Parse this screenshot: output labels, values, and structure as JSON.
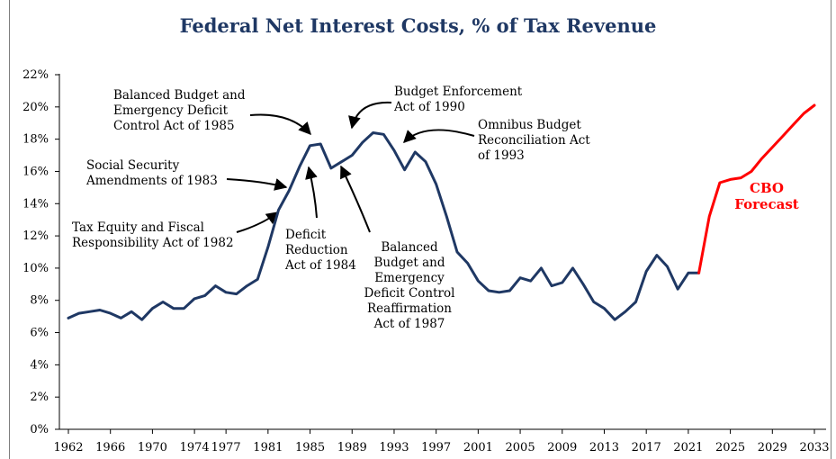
{
  "chart_data": {
    "type": "line",
    "title": "Federal Net Interest Costs, % of Tax Revenue",
    "xlabel": "",
    "ylabel": "",
    "xlim": [
      1962,
      2033
    ],
    "ylim": [
      0,
      22
    ],
    "x_ticks": [
      "1962",
      "1966",
      "1970",
      "1974",
      "1977",
      "1981",
      "1985",
      "1989",
      "1993",
      "1997",
      "2001",
      "2005",
      "2009",
      "2013",
      "2017",
      "2021",
      "2025",
      "2029",
      "2033"
    ],
    "y_ticks": [
      "0%",
      "2%",
      "4%",
      "6%",
      "8%",
      "10%",
      "12%",
      "14%",
      "16%",
      "18%",
      "20%",
      "22%"
    ],
    "grid": false,
    "colors": {
      "historical": "#1f3864",
      "forecast": "#ff0000"
    },
    "series": [
      {
        "name": "",
        "x": [
          1962,
          1963,
          1964,
          1965,
          1966,
          1967,
          1968,
          1969,
          1970,
          1971,
          1972,
          1973,
          1974,
          1975,
          1976,
          1977,
          1978,
          1979,
          1980,
          1981,
          1982,
          1983,
          1984,
          1985,
          1986,
          1987,
          1988,
          1989,
          1990,
          1991,
          1992,
          1993,
          1994,
          1995,
          1996,
          1997,
          1998,
          1999,
          2000,
          2001,
          2002,
          2003,
          2004,
          2005,
          2006,
          2007,
          2008,
          2009,
          2010,
          2011,
          2012,
          2013,
          2014,
          2015,
          2016,
          2017,
          2018,
          2019,
          2020,
          2021,
          2022
        ],
        "y": [
          6.9,
          7.2,
          7.3,
          7.4,
          7.2,
          6.9,
          7.3,
          6.8,
          7.5,
          7.9,
          7.5,
          7.5,
          8.1,
          8.3,
          8.9,
          8.5,
          8.4,
          8.9,
          9.3,
          11.3,
          13.6,
          14.8,
          16.3,
          17.6,
          17.7,
          16.2,
          16.6,
          17.0,
          17.8,
          18.4,
          18.3,
          17.3,
          16.1,
          17.2,
          16.6,
          15.2,
          13.2,
          11.0,
          10.3,
          9.2,
          8.6,
          8.5,
          8.6,
          9.4,
          9.2,
          10.0,
          8.9,
          9.1,
          10.0,
          9.0,
          7.9,
          7.5,
          6.8,
          7.3,
          7.9,
          9.8,
          10.8,
          10.1,
          8.7,
          9.7,
          9.7
        ]
      },
      {
        "name": "CBO Forecast",
        "x": [
          2022,
          2023,
          2024,
          2025,
          2026,
          2027,
          2028,
          2029,
          2030,
          2031,
          2032,
          2033
        ],
        "y": [
          9.7,
          13.2,
          15.3,
          15.5,
          15.6,
          16.0,
          16.8,
          17.5,
          18.2,
          18.9,
          19.6,
          20.1
        ]
      }
    ],
    "annotations": {
      "tefra": [
        "Tax Equity and Fiscal",
        "Responsibility Act of 1982"
      ],
      "ss": [
        "Social Security",
        "Amendments of 1983"
      ],
      "dra": [
        "Deficit",
        "Reduction",
        "Act of 1984"
      ],
      "bbedc": [
        "Balanced Budget and",
        "Emergency Deficit",
        "Control Act of 1985"
      ],
      "bbedcra": [
        "Balanced",
        "Budget and",
        "Emergency",
        "Deficit Control",
        "Reaffirmation",
        "Act of 1987"
      ],
      "bea": [
        "Budget Enforcement",
        "Act of 1990"
      ],
      "obra": [
        "Omnibus Budget",
        "Reconciliation Act",
        "of 1993"
      ],
      "cbo": [
        "CBO",
        "Forecast"
      ]
    }
  }
}
